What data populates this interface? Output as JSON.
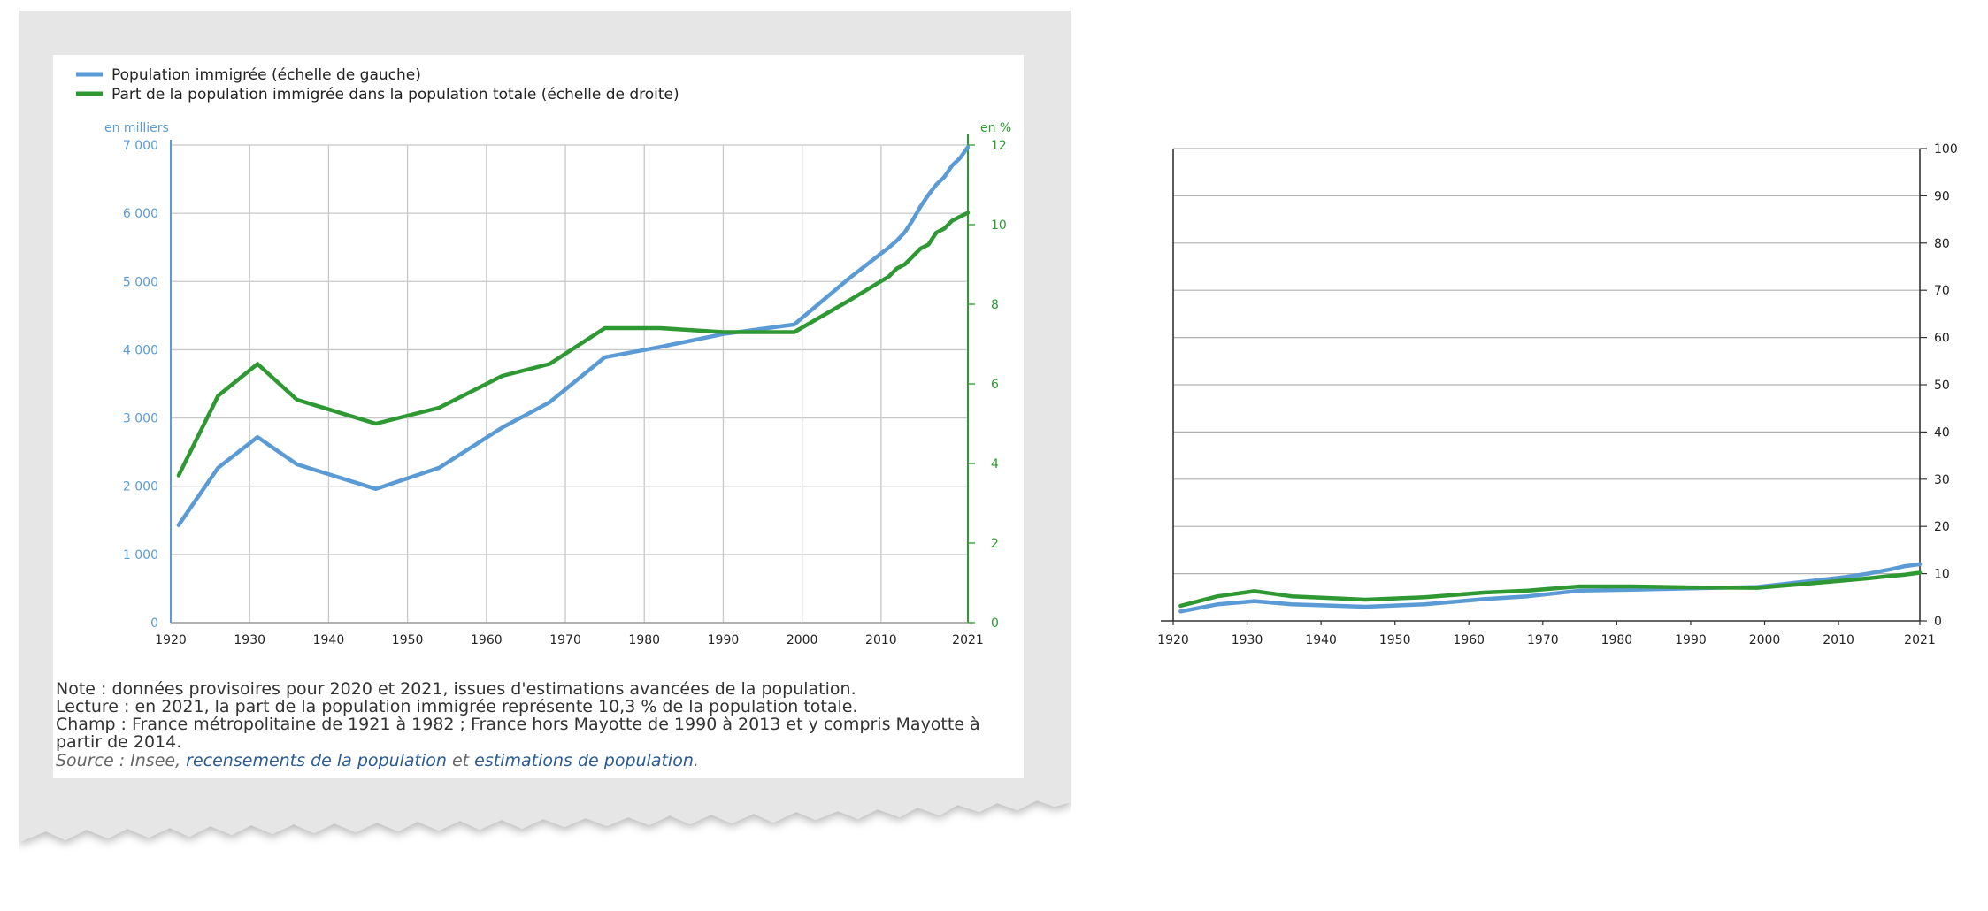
{
  "chart_data": [
    {
      "type": "line",
      "legend": [
        {
          "label": "Population immigrée (échelle de gauche)",
          "color": "#5b9bd5"
        },
        {
          "label": "Part de la population immigrée dans la population totale (échelle de droite)",
          "color": "#2e9932"
        }
      ],
      "left_axis": {
        "unit": "en milliers",
        "ticks": [
          "0",
          "1 000",
          "2 000",
          "3 000",
          "4 000",
          "5 000",
          "6 000",
          "7 000"
        ],
        "ylim": [
          0,
          7000
        ],
        "color": "#5b9bd5"
      },
      "right_axis": {
        "unit": "en %",
        "ticks": [
          "0",
          "2",
          "4",
          "6",
          "8",
          "10",
          "12"
        ],
        "ylim": [
          0,
          12
        ],
        "color": "#2e9932"
      },
      "x_ticks": [
        "1920",
        "1930",
        "1940",
        "1950",
        "1960",
        "1970",
        "1980",
        "1990",
        "2000",
        "2010",
        "2021"
      ],
      "xlim": [
        1920,
        2021
      ],
      "grid": true,
      "series": [
        {
          "name": "Population immigrée (échelle de gauche)",
          "axis": "left",
          "color": "#5b9bd5",
          "x": [
            1921,
            1926,
            1931,
            1936,
            1946,
            1954,
            1962,
            1968,
            1975,
            1982,
            1990,
            1999,
            2006,
            2011,
            2012,
            2013,
            2014,
            2015,
            2016,
            2017,
            2018,
            2019,
            2020,
            2021
          ],
          "y": [
            1430,
            2270,
            2720,
            2320,
            1960,
            2270,
            2860,
            3230,
            3890,
            4040,
            4230,
            4370,
            5050,
            5500,
            5600,
            5720,
            5900,
            6100,
            6270,
            6420,
            6530,
            6700,
            6810,
            6970
          ]
        },
        {
          "name": "Part de la population immigrée dans la population totale (échelle de droite)",
          "axis": "right",
          "color": "#2e9932",
          "x": [
            1921,
            1926,
            1931,
            1936,
            1946,
            1954,
            1962,
            1968,
            1975,
            1982,
            1990,
            1999,
            2006,
            2011,
            2012,
            2013,
            2014,
            2015,
            2016,
            2017,
            2018,
            2019,
            2020,
            2021
          ],
          "y": [
            3.7,
            5.7,
            6.5,
            5.6,
            5.0,
            5.4,
            6.2,
            6.5,
            7.4,
            7.4,
            7.3,
            7.3,
            8.1,
            8.7,
            8.9,
            9.0,
            9.2,
            9.4,
            9.5,
            9.8,
            9.9,
            10.1,
            10.2,
            10.3
          ]
        }
      ]
    },
    {
      "type": "line",
      "x_ticks": [
        "1920",
        "1930",
        "1940",
        "1950",
        "1960",
        "1970",
        "1980",
        "1990",
        "2000",
        "2010",
        "2021"
      ],
      "xlim": [
        1920,
        2021
      ],
      "right_axis": {
        "ticks": [
          "0",
          "10",
          "20",
          "30",
          "40",
          "50",
          "60",
          "70",
          "80",
          "90",
          "100"
        ],
        "ylim": [
          0,
          100
        ]
      },
      "grid": true,
      "series": [
        {
          "color": "#5b9bd5",
          "x": [
            1921,
            1926,
            1931,
            1936,
            1946,
            1954,
            1962,
            1968,
            1975,
            1982,
            1990,
            1999,
            2006,
            2011,
            2014,
            2017,
            2019,
            2021
          ],
          "y": [
            2,
            3.5,
            4.2,
            3.5,
            3.0,
            3.5,
            4.6,
            5.2,
            6.4,
            6.6,
            6.9,
            7.2,
            8.4,
            9.3,
            10.0,
            10.9,
            11.6,
            12.0
          ]
        },
        {
          "color": "#2e9932",
          "x": [
            1921,
            1926,
            1931,
            1936,
            1946,
            1954,
            1962,
            1968,
            1975,
            1982,
            1990,
            1999,
            2006,
            2011,
            2014,
            2017,
            2019,
            2021
          ],
          "y": [
            3.2,
            5.2,
            6.3,
            5.2,
            4.5,
            5.0,
            6.0,
            6.4,
            7.3,
            7.3,
            7.1,
            7.0,
            7.9,
            8.6,
            9.0,
            9.5,
            9.8,
            10.2
          ]
        }
      ]
    }
  ],
  "notes": {
    "note": "Note : données provisoires pour 2020 et 2021, issues d'estimations avancées de la population.",
    "lecture": "Lecture : en 2021, la part de la population immigrée représente 10,3 % de la population totale.",
    "champ_1": "Champ : France métropolitaine de 1921 à 1982 ; France hors Mayotte de 1990 à 2013 et y compris Mayotte à",
    "champ_2": "partir de 2014.",
    "source_prefix": "Source : Insee,",
    "source_link_1": "recensements de la population",
    "source_mid": "et",
    "source_link_2": "estimations de population",
    "source_end": "."
  }
}
